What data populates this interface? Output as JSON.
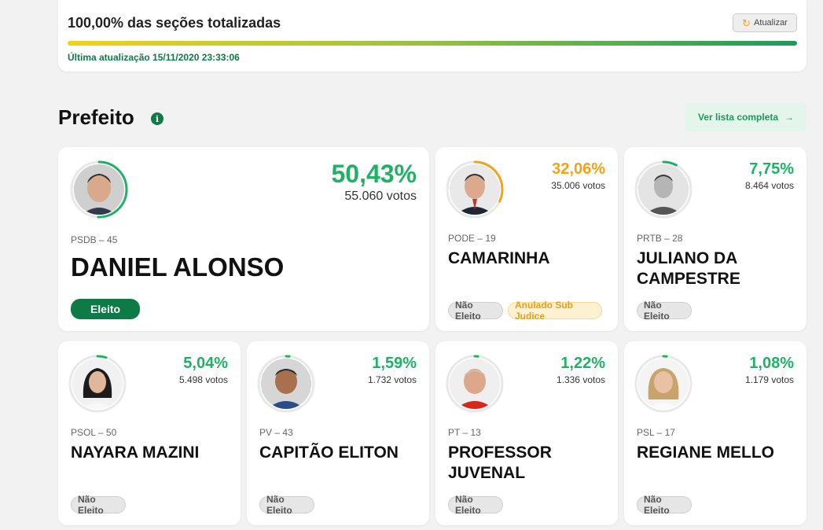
{
  "progress": {
    "title": "100,00% das seções totalizadas",
    "fraction": 1.0,
    "refresh_label": "Atualizar",
    "last_update": "Última atualização 15/11/2020 23:33:06"
  },
  "section": {
    "title": "Prefeito",
    "list_label": "Ver lista completa"
  },
  "candidates": [
    {
      "party": "PSDB – 45",
      "name": "DANIEL ALONSO",
      "pct": "50,43%",
      "votes": "55.060 votos",
      "share": 0.5043,
      "ring_color": "#1fb266",
      "badges": [
        "Eleito"
      ]
    },
    {
      "party": "PODE – 19",
      "name": "CAMARINHA",
      "pct": "32,06%",
      "votes": "35.006 votos",
      "share": 0.3206,
      "ring_color": "#f2a31a",
      "badges": [
        "Não Eleito",
        "Anulado Sub Judice"
      ]
    },
    {
      "party": "PRTB – 28",
      "name": "JULIANO DA CAMPESTRE",
      "pct": "7,75%",
      "votes": "8.464 votos",
      "share": 0.0775,
      "ring_color": "#1fb266",
      "badges": [
        "Não Eleito"
      ]
    },
    {
      "party": "PSOL – 50",
      "name": "NAYARA MAZINI",
      "pct": "5,04%",
      "votes": "5.498 votos",
      "share": 0.0504,
      "ring_color": "#1fb266",
      "badges": [
        "Não Eleito"
      ]
    },
    {
      "party": "PV – 43",
      "name": "CAPITÃO ELITON",
      "pct": "1,59%",
      "votes": "1.732 votos",
      "share": 0.0159,
      "ring_color": "#1fb266",
      "badges": [
        "Não Eleito"
      ]
    },
    {
      "party": "PT – 13",
      "name": "PROFESSOR JUVENAL",
      "pct": "1,22%",
      "votes": "1.336 votos",
      "share": 0.0122,
      "ring_color": "#1fb266",
      "badges": [
        "Não Eleito"
      ]
    },
    {
      "party": "PSL – 17",
      "name": "REGIANE MELLO",
      "pct": "1,08%",
      "votes": "1.179 votos",
      "share": 0.0108,
      "ring_color": "#1fb266",
      "badges": [
        "Não Eleito"
      ]
    }
  ]
}
